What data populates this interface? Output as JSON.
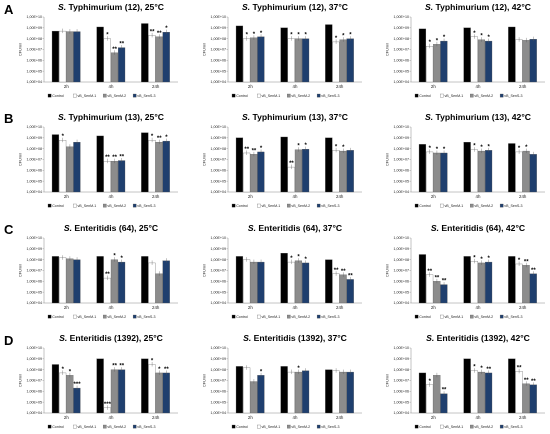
{
  "figure": {
    "row_letters": [
      "A",
      "B",
      "C",
      "D"
    ]
  },
  "colors": {
    "Control": "#000000",
    "vB_SenM-1": "#ffffff",
    "vB_SenM-2": "#8c8c8c",
    "vB_SenS-3": "#1f3f6e"
  },
  "chart_data": [
    {
      "type": "bar",
      "row": 0,
      "col": 0,
      "title_italic": "S.",
      "title_rest": "Typhimurium (12), 25°C",
      "ylabel": "CFU/ml",
      "yscale": "log",
      "ylim": [
        10000,
        10000000000
      ],
      "yticks": [
        "1,00E+04",
        "1,00E+05",
        "1,00E+06",
        "1,00E+07",
        "1,00E+08",
        "1,00E+09",
        "1,00E+10"
      ],
      "categories": [
        "2h",
        "4h",
        "24h"
      ],
      "series": [
        {
          "name": "Control",
          "values": [
            500000000,
            1200000000,
            2500000000
          ]
        },
        {
          "name": "vB_SenM-1",
          "values": [
            500000000,
            100000000,
            200000000
          ]
        },
        {
          "name": "vB_SenM-2",
          "values": [
            450000000,
            5000000,
            150000000
          ]
        },
        {
          "name": "vB_SenS-3",
          "values": [
            450000000,
            15000000,
            400000000
          ]
        }
      ],
      "significance": [
        [
          "",
          "",
          "",
          ""
        ],
        [
          "",
          "*",
          "**",
          "**"
        ],
        [
          "",
          "**",
          "**",
          "*"
        ]
      ]
    },
    {
      "type": "bar",
      "row": 0,
      "col": 1,
      "title_italic": "S.",
      "title_rest": "Typhimurium (12), 37°C",
      "ylabel": "CFU/ml",
      "yscale": "log",
      "ylim": [
        10000,
        10000000000
      ],
      "yticks": [
        "1,00E+04",
        "1,00E+05",
        "1,00E+06",
        "1,00E+07",
        "1,00E+08",
        "1,00E+09",
        "1,00E+10"
      ],
      "categories": [
        "2h",
        "4h",
        "24h"
      ],
      "series": [
        {
          "name": "Control",
          "values": [
            1500000000,
            1000000000,
            2000000000
          ]
        },
        {
          "name": "vB_SenM-1",
          "values": [
            100000000,
            100000000,
            50000000
          ]
        },
        {
          "name": "vB_SenM-2",
          "values": [
            120000000,
            100000000,
            80000000
          ]
        },
        {
          "name": "vB_SenS-3",
          "values": [
            150000000,
            100000000,
            100000000
          ]
        }
      ],
      "significance": [
        [
          "",
          "*",
          "*",
          "*"
        ],
        [
          "",
          "*",
          "*",
          "*"
        ],
        [
          "",
          "*",
          "*",
          "*"
        ]
      ]
    },
    {
      "type": "bar",
      "row": 0,
      "col": 2,
      "title_italic": "S.",
      "title_rest": "Typhimurium (12), 42°C",
      "ylabel": "CFU/ml",
      "yscale": "log",
      "ylim": [
        10000,
        10000000000
      ],
      "yticks": [
        "1,00E+04",
        "1,00E+05",
        "1,00E+06",
        "1,00E+07",
        "1,00E+08",
        "1,00E+09",
        "1,00E+10"
      ],
      "categories": [
        "2h",
        "4h",
        "24h"
      ],
      "series": [
        {
          "name": "Control",
          "values": [
            800000000,
            1000000000,
            1200000000
          ]
        },
        {
          "name": "vB_SenM-1",
          "values": [
            20000000,
            150000000,
            80000000
          ]
        },
        {
          "name": "vB_SenM-2",
          "values": [
            30000000,
            80000000,
            70000000
          ]
        },
        {
          "name": "vB_SenS-3",
          "values": [
            60000000,
            60000000,
            90000000
          ]
        }
      ],
      "significance": [
        [
          "",
          "*",
          "*",
          "*"
        ],
        [
          "",
          "*",
          "*",
          "*"
        ],
        [
          "",
          "",
          "",
          ""
        ]
      ]
    },
    {
      "type": "bar",
      "row": 1,
      "col": 0,
      "title_italic": "S.",
      "title_rest": "Typhimurium (13), 25°C",
      "ylabel": "CFU/ml",
      "yscale": "log",
      "ylim": [
        10000,
        10000000000
      ],
      "yticks": [
        "1,00E+04",
        "1,00E+05",
        "1,00E+06",
        "1,00E+07",
        "1,00E+08",
        "1,00E+09",
        "1,00E+10"
      ],
      "categories": [
        "2h",
        "4h",
        "24h"
      ],
      "series": [
        {
          "name": "Control",
          "values": [
            2000000000,
            1500000000,
            3000000000
          ]
        },
        {
          "name": "vB_SenM-1",
          "values": [
            600000000,
            7000000,
            600000000
          ]
        },
        {
          "name": "vB_SenM-2",
          "values": [
            150000000,
            7000000,
            400000000
          ]
        },
        {
          "name": "vB_SenS-3",
          "values": [
            400000000,
            8000000,
            500000000
          ]
        }
      ],
      "significance": [
        [
          "",
          "*",
          "",
          ""
        ],
        [
          "",
          "**",
          "**",
          "**"
        ],
        [
          "",
          "*",
          "**",
          "*"
        ]
      ]
    },
    {
      "type": "bar",
      "row": 1,
      "col": 1,
      "title_italic": "S.",
      "title_rest": "Typhimurium (13), 37°C",
      "ylabel": "CFU/ml",
      "yscale": "log",
      "ylim": [
        10000,
        10000000000
      ],
      "yticks": [
        "1,00E+04",
        "1,00E+05",
        "1,00E+06",
        "1,00E+07",
        "1,00E+08",
        "1,00E+09",
        "1,00E+10"
      ],
      "categories": [
        "2h",
        "4h",
        "24h"
      ],
      "series": [
        {
          "name": "Control",
          "values": [
            1000000000,
            1200000000,
            1000000000
          ]
        },
        {
          "name": "vB_SenM-1",
          "values": [
            40000000,
            2000000,
            70000000
          ]
        },
        {
          "name": "vB_SenM-2",
          "values": [
            30000000,
            80000000,
            60000000
          ]
        },
        {
          "name": "vB_SenS-3",
          "values": [
            50000000,
            90000000,
            70000000
          ]
        }
      ],
      "significance": [
        [
          "",
          "**",
          "**",
          "*"
        ],
        [
          "",
          "**",
          "*",
          "*"
        ],
        [
          "",
          "*",
          "*",
          ""
        ]
      ]
    },
    {
      "type": "bar",
      "row": 1,
      "col": 2,
      "title_italic": "S.",
      "title_rest": "Typhimurium (13), 42°C",
      "ylabel": "CFU/ml",
      "yscale": "log",
      "ylim": [
        10000,
        10000000000
      ],
      "yticks": [
        "1,00E+04",
        "1,00E+05",
        "1,00E+06",
        "1,00E+07",
        "1,00E+08",
        "1,00E+09",
        "1,00E+10"
      ],
      "categories": [
        "2h",
        "4h",
        "24h"
      ],
      "series": [
        {
          "name": "Control",
          "values": [
            250000000,
            400000000,
            300000000
          ]
        },
        {
          "name": "vB_SenM-1",
          "values": [
            50000000,
            80000000,
            50000000
          ]
        },
        {
          "name": "vB_SenM-2",
          "values": [
            40000000,
            60000000,
            60000000
          ]
        },
        {
          "name": "vB_SenS-3",
          "values": [
            40000000,
            70000000,
            30000000
          ]
        }
      ],
      "significance": [
        [
          "",
          "*",
          "*",
          "*"
        ],
        [
          "",
          "*",
          "*",
          "*"
        ],
        [
          "",
          "*",
          "*",
          ""
        ]
      ]
    },
    {
      "type": "bar",
      "row": 2,
      "col": 0,
      "title_italic": "S.",
      "title_rest": "Enteritidis (64), 25°C",
      "ylabel": "CFU/ml",
      "yscale": "log",
      "ylim": [
        10000,
        10000000000
      ],
      "yticks": [
        "1,00E+04",
        "1,00E+05",
        "1,00E+06",
        "1,00E+07",
        "1,00E+08",
        "1,00E+09",
        "1,00E+10"
      ],
      "categories": [
        "2h",
        "4h",
        "24h"
      ],
      "series": [
        {
          "name": "Control",
          "values": [
            200000000,
            200000000,
            200000000
          ]
        },
        {
          "name": "vB_SenM-1",
          "values": [
            150000000,
            2000000,
            50000000
          ]
        },
        {
          "name": "vB_SenM-2",
          "values": [
            120000000,
            100000000,
            5000000
          ]
        },
        {
          "name": "vB_SenS-3",
          "values": [
            100000000,
            60000000,
            80000000
          ]
        }
      ],
      "significance": [
        [
          "",
          "",
          "",
          ""
        ],
        [
          "",
          "**",
          "*",
          "*"
        ],
        [
          "",
          "",
          "",
          ""
        ]
      ]
    },
    {
      "type": "bar",
      "row": 2,
      "col": 1,
      "title_italic": "S.",
      "title_rest": "Enteritidis (64), 37°C",
      "ylabel": "CFU/ml",
      "yscale": "log",
      "ylim": [
        10000,
        10000000000
      ],
      "yticks": [
        "1,00E+04",
        "1,00E+05",
        "1,00E+06",
        "1,00E+07",
        "1,00E+08",
        "1,00E+09",
        "1,00E+10"
      ],
      "categories": [
        "2h",
        "4h",
        "24h"
      ],
      "series": [
        {
          "name": "Control",
          "values": [
            200000000,
            400000000,
            100000000
          ]
        },
        {
          "name": "vB_SenM-1",
          "values": [
            100000000,
            60000000,
            5000000
          ]
        },
        {
          "name": "vB_SenM-2",
          "values": [
            60000000,
            80000000,
            4000000
          ]
        },
        {
          "name": "vB_SenS-3",
          "values": [
            60000000,
            50000000,
            1500000
          ]
        }
      ],
      "significance": [
        [
          "",
          "",
          "",
          ""
        ],
        [
          "",
          "*",
          "*",
          "*"
        ],
        [
          "",
          "**",
          "**",
          "**"
        ]
      ]
    },
    {
      "type": "bar",
      "row": 2,
      "col": 2,
      "title_italic": "S.",
      "title_rest": "Enteritidis (64), 42°C",
      "ylabel": "CFU/ml",
      "yscale": "log",
      "ylim": [
        10000,
        10000000000
      ],
      "yticks": [
        "1,00E+04",
        "1,00E+05",
        "1,00E+06",
        "1,00E+07",
        "1,00E+08",
        "1,00E+09",
        "1,00E+10"
      ],
      "categories": [
        "2h",
        "4h",
        "24h"
      ],
      "series": [
        {
          "name": "Control",
          "values": [
            300000000,
            200000000,
            200000000
          ]
        },
        {
          "name": "vB_SenM-1",
          "values": [
            4000000,
            70000000,
            40000000
          ]
        },
        {
          "name": "vB_SenM-2",
          "values": [
            1000000,
            50000000,
            30000000
          ]
        },
        {
          "name": "vB_SenS-3",
          "values": [
            500000,
            60000000,
            5000000
          ]
        }
      ],
      "significance": [
        [
          "",
          "**",
          "**",
          "**"
        ],
        [
          "",
          "*",
          "*",
          "*"
        ],
        [
          "",
          "*",
          "**",
          "**"
        ]
      ]
    },
    {
      "type": "bar",
      "row": 3,
      "col": 0,
      "title_italic": "S.",
      "title_rest": "Enteritidis (1392), 25°C",
      "ylabel": "CFU/ml",
      "yscale": "log",
      "ylim": [
        10000,
        10000000000
      ],
      "yticks": [
        "1,00E+04",
        "1,00E+05",
        "1,00E+06",
        "1,00E+07",
        "1,00E+08",
        "1,00E+09",
        "1,00E+10"
      ],
      "categories": [
        "2h",
        "4h",
        "24h"
      ],
      "series": [
        {
          "name": "Control",
          "values": [
            300000000,
            1000000000,
            1000000000
          ]
        },
        {
          "name": "vB_SenM-1",
          "values": [
            50000000,
            30000,
            300000000
          ]
        },
        {
          "name": "vB_SenM-2",
          "values": [
            30000000,
            100000000,
            50000000
          ]
        },
        {
          "name": "vB_SenS-3",
          "values": [
            2000000,
            100000000,
            50000000
          ]
        }
      ],
      "significance": [
        [
          "",
          "*",
          "*",
          "***"
        ],
        [
          "",
          "***",
          "**",
          "**"
        ],
        [
          "",
          "*",
          "*",
          "**"
        ]
      ]
    },
    {
      "type": "bar",
      "row": 3,
      "col": 1,
      "title_italic": "S.",
      "title_rest": "Enteritidis (1392), 37°C",
      "ylabel": "CFU/ml",
      "yscale": "log",
      "ylim": [
        10000,
        10000000000
      ],
      "yticks": [
        "1,00E+04",
        "1,00E+05",
        "1,00E+06",
        "1,00E+07",
        "1,00E+08",
        "1,00E+09",
        "1,00E+10"
      ],
      "categories": [
        "2h",
        "4h",
        "24h"
      ],
      "series": [
        {
          "name": "Control",
          "values": [
            200000000,
            200000000,
            100000000
          ]
        },
        {
          "name": "vB_SenM-1",
          "values": [
            150000000,
            60000000,
            80000000
          ]
        },
        {
          "name": "vB_SenM-2",
          "values": [
            8000000,
            60000000,
            60000000
          ]
        },
        {
          "name": "vB_SenS-3",
          "values": [
            30000000,
            80000000,
            60000000
          ]
        }
      ],
      "significance": [
        [
          "",
          "",
          "",
          "*"
        ],
        [
          "",
          "",
          "*",
          ""
        ],
        [
          "",
          "",
          "",
          ""
        ]
      ]
    },
    {
      "type": "bar",
      "row": 3,
      "col": 2,
      "title_italic": "S.",
      "title_rest": "Enteritidis (1392), 42°C",
      "ylabel": "CFU/ml",
      "yscale": "log",
      "ylim": [
        10000,
        10000000000
      ],
      "yticks": [
        "1,00E+04",
        "1,00E+05",
        "1,00E+06",
        "1,00E+07",
        "1,00E+08",
        "1,00E+09",
        "1,00E+10"
      ],
      "categories": [
        "2h",
        "4h",
        "24h"
      ],
      "series": [
        {
          "name": "Control",
          "values": [
            50000000,
            1000000000,
            1000000000
          ]
        },
        {
          "name": "vB_SenM-1",
          "values": [
            4000000,
            80000000,
            70000000
          ]
        },
        {
          "name": "vB_SenM-2",
          "values": [
            30000000,
            60000000,
            5000000
          ]
        },
        {
          "name": "vB_SenS-3",
          "values": [
            600000,
            50000000,
            4000000
          ]
        }
      ],
      "significance": [
        [
          "",
          "*",
          "",
          "**"
        ],
        [
          "",
          "*",
          "*",
          "**"
        ],
        [
          "",
          "**",
          "**",
          "**"
        ]
      ]
    }
  ]
}
